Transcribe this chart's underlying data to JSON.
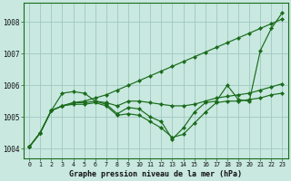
{
  "background_color": "#c8e8e0",
  "plot_bg_color": "#c8e8e0",
  "grid_color": "#a0c8c0",
  "line_color": "#1a6b1a",
  "title": "Graphe pression niveau de la mer (hPa)",
  "ylim": [
    1003.7,
    1008.6
  ],
  "xlim": [
    -0.5,
    23.5
  ],
  "yticks": [
    1004,
    1005,
    1006,
    1007,
    1008
  ],
  "xticks": [
    0,
    1,
    2,
    3,
    4,
    5,
    6,
    7,
    8,
    9,
    10,
    11,
    12,
    13,
    14,
    15,
    16,
    17,
    18,
    19,
    20,
    21,
    22,
    23
  ],
  "series": [
    [
      1004.05,
      1004.5,
      1005.2,
      1005.75,
      1005.8,
      1005.75,
      1005.5,
      1005.4,
      1005.1,
      1005.3,
      1005.25,
      1005.0,
      1004.85,
      1004.3,
      1004.65,
      1005.15,
      1005.45,
      1005.5,
      1006.0,
      1005.55,
      1005.5,
      1007.1,
      1007.8,
      1008.3
    ],
    [
      1004.05,
      1004.5,
      1005.2,
      1005.35,
      1005.45,
      1005.45,
      1005.5,
      1005.45,
      1005.35,
      1005.5,
      1005.5,
      1005.45,
      1005.4,
      1005.35,
      1005.35,
      1005.4,
      1005.5,
      1005.6,
      1005.65,
      1005.7,
      1005.75,
      1005.85,
      1005.95,
      1006.05
    ],
    [
      1004.05,
      1004.5,
      1005.2,
      1005.35,
      1005.4,
      1005.4,
      1005.45,
      1005.35,
      1005.05,
      1005.1,
      1005.05,
      1004.85,
      1004.65,
      1004.35,
      1004.45,
      1004.8,
      1005.15,
      1005.45,
      1005.5,
      1005.5,
      1005.55,
      1005.6,
      1005.7,
      1005.75
    ],
    [
      1004.05,
      1004.5,
      1005.2,
      1005.35,
      1005.45,
      1005.5,
      1005.6,
      1005.7,
      1005.85,
      1006.0,
      1006.15,
      1006.3,
      1006.45,
      1006.6,
      1006.75,
      1006.9,
      1007.05,
      1007.2,
      1007.35,
      1007.5,
      1007.65,
      1007.8,
      1007.95,
      1008.1
    ]
  ]
}
